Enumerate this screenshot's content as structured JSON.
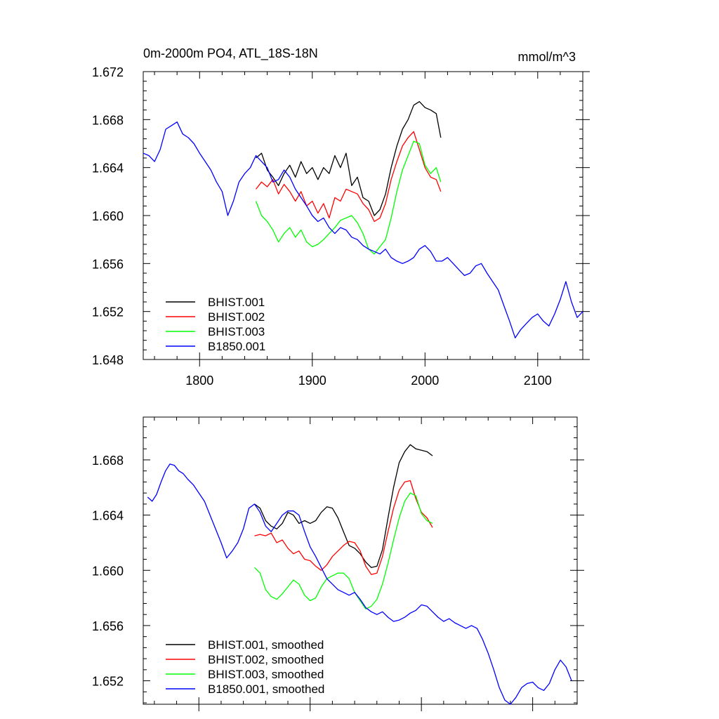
{
  "chart_data": [
    {
      "type": "line",
      "title": "0m-2000m PO4, ATL_18S-18N",
      "units": "mmol/m^3",
      "xlim": [
        1750,
        2140
      ],
      "ylim": [
        1.648,
        1.672
      ],
      "xticks": [
        1800,
        1900,
        2000,
        2100
      ],
      "xtick_labels": [
        "1800",
        "1900",
        "2000",
        "2100"
      ],
      "yticks": [
        1.648,
        1.652,
        1.656,
        1.66,
        1.664,
        1.668,
        1.672
      ],
      "ytick_labels": [
        "1.648",
        "1.652",
        "1.656",
        "1.660",
        "1.664",
        "1.668",
        "1.672"
      ],
      "legend_position": "bottom-left",
      "series": [
        {
          "name": "BHIST.001",
          "color": "#000000",
          "x": [
            1850,
            1855,
            1860,
            1865,
            1870,
            1875,
            1880,
            1885,
            1890,
            1895,
            1900,
            1905,
            1910,
            1915,
            1920,
            1925,
            1930,
            1935,
            1940,
            1945,
            1950,
            1955,
            1960,
            1965,
            1970,
            1975,
            1980,
            1985,
            1990,
            1995,
            2000,
            2005,
            2010,
            2014
          ],
          "y": [
            1.6648,
            1.6652,
            1.6638,
            1.6632,
            1.6625,
            1.6635,
            1.6642,
            1.6632,
            1.6645,
            1.6635,
            1.664,
            1.663,
            1.664,
            1.6635,
            1.665,
            1.664,
            1.6652,
            1.6625,
            1.6632,
            1.6615,
            1.6612,
            1.66,
            1.6605,
            1.6618,
            1.664,
            1.6658,
            1.6672,
            1.668,
            1.6692,
            1.6695,
            1.669,
            1.6688,
            1.6685,
            1.6665
          ]
        },
        {
          "name": "BHIST.002",
          "color": "#ff0000",
          "x": [
            1850,
            1855,
            1860,
            1865,
            1870,
            1875,
            1880,
            1885,
            1890,
            1895,
            1900,
            1905,
            1910,
            1915,
            1920,
            1925,
            1930,
            1935,
            1940,
            1945,
            1950,
            1955,
            1960,
            1965,
            1970,
            1975,
            1980,
            1985,
            1990,
            1995,
            2000,
            2005,
            2010,
            2014
          ],
          "y": [
            1.6622,
            1.6628,
            1.6624,
            1.663,
            1.6618,
            1.6626,
            1.662,
            1.6612,
            1.662,
            1.6608,
            1.6612,
            1.6602,
            1.661,
            1.6598,
            1.6615,
            1.6612,
            1.6622,
            1.662,
            1.6618,
            1.661,
            1.6605,
            1.6595,
            1.6598,
            1.661,
            1.663,
            1.6645,
            1.6658,
            1.6665,
            1.667,
            1.6655,
            1.664,
            1.6632,
            1.663,
            1.662
          ]
        },
        {
          "name": "BHIST.003",
          "color": "#00ff00",
          "x": [
            1850,
            1855,
            1860,
            1865,
            1870,
            1875,
            1880,
            1885,
            1890,
            1895,
            1900,
            1905,
            1910,
            1915,
            1920,
            1925,
            1930,
            1935,
            1940,
            1945,
            1950,
            1955,
            1960,
            1965,
            1970,
            1975,
            1980,
            1985,
            1990,
            1995,
            2000,
            2005,
            2010,
            2014
          ],
          "y": [
            1.6612,
            1.66,
            1.6595,
            1.6588,
            1.6578,
            1.6585,
            1.659,
            1.6582,
            1.6588,
            1.6578,
            1.6574,
            1.6576,
            1.658,
            1.6585,
            1.659,
            1.6596,
            1.6598,
            1.66,
            1.6594,
            1.6585,
            1.6572,
            1.6568,
            1.6574,
            1.658,
            1.6598,
            1.662,
            1.6638,
            1.665,
            1.6662,
            1.666,
            1.6642,
            1.6635,
            1.664,
            1.6628
          ]
        },
        {
          "name": "B1850.001",
          "color": "#0000ff",
          "x": [
            1750,
            1755,
            1760,
            1765,
            1770,
            1775,
            1780,
            1785,
            1790,
            1795,
            1800,
            1805,
            1810,
            1815,
            1820,
            1825,
            1830,
            1835,
            1840,
            1845,
            1850,
            1855,
            1860,
            1865,
            1870,
            1875,
            1880,
            1885,
            1890,
            1895,
            1900,
            1905,
            1910,
            1915,
            1920,
            1925,
            1930,
            1935,
            1940,
            1945,
            1950,
            1955,
            1960,
            1965,
            1970,
            1975,
            1980,
            1985,
            1990,
            1995,
            2000,
            2005,
            2010,
            2015,
            2020,
            2025,
            2030,
            2035,
            2040,
            2045,
            2050,
            2055,
            2060,
            2065,
            2070,
            2075,
            2080,
            2085,
            2090,
            2095,
            2100,
            2105,
            2110,
            2115,
            2120,
            2125,
            2130,
            2135,
            2140
          ],
          "y": [
            1.6652,
            1.665,
            1.6645,
            1.6655,
            1.6672,
            1.6675,
            1.6678,
            1.6668,
            1.6665,
            1.666,
            1.6652,
            1.6645,
            1.6638,
            1.6628,
            1.662,
            1.66,
            1.6612,
            1.6628,
            1.6635,
            1.664,
            1.665,
            1.6645,
            1.664,
            1.6628,
            1.663,
            1.6638,
            1.6632,
            1.6622,
            1.6615,
            1.6608,
            1.66,
            1.6595,
            1.6598,
            1.659,
            1.6585,
            1.659,
            1.6588,
            1.6582,
            1.658,
            1.6575,
            1.6572,
            1.657,
            1.6568,
            1.6572,
            1.6565,
            1.6562,
            1.656,
            1.6562,
            1.6565,
            1.6572,
            1.6575,
            1.657,
            1.6562,
            1.6562,
            1.6565,
            1.656,
            1.6555,
            1.655,
            1.6552,
            1.6558,
            1.656,
            1.6552,
            1.6545,
            1.6538,
            1.6525,
            1.6512,
            1.6498,
            1.6505,
            1.651,
            1.6515,
            1.6518,
            1.6512,
            1.6508,
            1.6518,
            1.653,
            1.6545,
            1.6528,
            1.6515,
            1.652
          ]
        }
      ]
    },
    {
      "type": "line",
      "title": "",
      "xlim": [
        1750,
        2140
      ],
      "ylim": [
        1.6503,
        1.6711
      ],
      "xticks": [
        1800,
        1900,
        2000,
        2100
      ],
      "yticks": [
        1.652,
        1.656,
        1.66,
        1.664,
        1.668
      ],
      "ytick_labels": [
        "1.652",
        "1.656",
        "1.660",
        "1.664",
        "1.668"
      ],
      "legend_position": "bottom-left",
      "series": [
        {
          "name": "BHIST.001, smoothed",
          "color": "#000000",
          "x": [
            1850,
            1855,
            1860,
            1865,
            1870,
            1875,
            1880,
            1885,
            1890,
            1895,
            1900,
            1905,
            1910,
            1915,
            1920,
            1925,
            1930,
            1935,
            1940,
            1945,
            1950,
            1955,
            1960,
            1965,
            1970,
            1975,
            1980,
            1985,
            1990,
            1995,
            2000,
            2005,
            2010
          ],
          "y": [
            1.6648,
            1.6645,
            1.6636,
            1.6632,
            1.663,
            1.6634,
            1.6642,
            1.664,
            1.6634,
            1.6636,
            1.6634,
            1.6636,
            1.6642,
            1.6646,
            1.6645,
            1.6638,
            1.6628,
            1.6618,
            1.6616,
            1.6612,
            1.6606,
            1.6602,
            1.6603,
            1.6615,
            1.6638,
            1.666,
            1.6678,
            1.6686,
            1.6691,
            1.6688,
            1.6687,
            1.6686,
            1.6683
          ]
        },
        {
          "name": "BHIST.002, smoothed",
          "color": "#ff0000",
          "x": [
            1850,
            1855,
            1860,
            1865,
            1870,
            1875,
            1880,
            1885,
            1890,
            1895,
            1900,
            1905,
            1910,
            1915,
            1920,
            1925,
            1930,
            1935,
            1940,
            1945,
            1950,
            1955,
            1960,
            1965,
            1970,
            1975,
            1980,
            1985,
            1990,
            1995,
            2000,
            2005,
            2010
          ],
          "y": [
            1.6625,
            1.6626,
            1.6625,
            1.6627,
            1.662,
            1.6622,
            1.6616,
            1.6612,
            1.6614,
            1.6608,
            1.6607,
            1.6603,
            1.66,
            1.6604,
            1.661,
            1.6614,
            1.6618,
            1.6621,
            1.662,
            1.6614,
            1.6603,
            1.6597,
            1.6598,
            1.661,
            1.6628,
            1.6645,
            1.6658,
            1.6664,
            1.6665,
            1.6652,
            1.6642,
            1.6638,
            1.6631
          ]
        },
        {
          "name": "BHIST.003, smoothed",
          "color": "#00ff00",
          "x": [
            1850,
            1855,
            1860,
            1865,
            1870,
            1875,
            1880,
            1885,
            1890,
            1895,
            1900,
            1905,
            1910,
            1915,
            1920,
            1925,
            1930,
            1935,
            1940,
            1945,
            1950,
            1955,
            1960,
            1965,
            1970,
            1975,
            1980,
            1985,
            1990,
            1995,
            2000,
            2005,
            2010
          ],
          "y": [
            1.6602,
            1.6598,
            1.6586,
            1.6581,
            1.6579,
            1.6583,
            1.6588,
            1.6593,
            1.659,
            1.6582,
            1.6578,
            1.658,
            1.6588,
            1.6594,
            1.6596,
            1.6598,
            1.6598,
            1.6594,
            1.6584,
            1.6578,
            1.6572,
            1.6574,
            1.6579,
            1.659,
            1.6605,
            1.6622,
            1.6638,
            1.665,
            1.6656,
            1.6654,
            1.6641,
            1.6636,
            1.6634
          ]
        },
        {
          "name": "B1850.001, smoothed",
          "color": "#0000ff",
          "x": [
            1754,
            1758,
            1762,
            1766,
            1770,
            1774,
            1778,
            1782,
            1786,
            1790,
            1795,
            1800,
            1805,
            1810,
            1815,
            1820,
            1825,
            1830,
            1835,
            1840,
            1845,
            1850,
            1855,
            1860,
            1865,
            1870,
            1875,
            1880,
            1885,
            1890,
            1895,
            1900,
            1905,
            1910,
            1915,
            1920,
            1925,
            1930,
            1935,
            1940,
            1945,
            1950,
            1955,
            1960,
            1965,
            1970,
            1975,
            1980,
            1985,
            1990,
            1995,
            2000,
            2005,
            2010,
            2015,
            2020,
            2025,
            2030,
            2035,
            2040,
            2045,
            2050,
            2055,
            2060,
            2065,
            2070,
            2075,
            2080,
            2085,
            2090,
            2095,
            2100,
            2105,
            2110,
            2115,
            2120,
            2125,
            2130,
            2135
          ],
          "y": [
            1.6653,
            1.665,
            1.6655,
            1.6664,
            1.6672,
            1.6677,
            1.6676,
            1.6672,
            1.667,
            1.6666,
            1.6662,
            1.6656,
            1.665,
            1.664,
            1.663,
            1.662,
            1.6609,
            1.6614,
            1.662,
            1.663,
            1.6645,
            1.6648,
            1.6642,
            1.6632,
            1.6628,
            1.6634,
            1.664,
            1.6643,
            1.6643,
            1.664,
            1.6628,
            1.6617,
            1.661,
            1.6602,
            1.6594,
            1.659,
            1.6586,
            1.6584,
            1.6582,
            1.6584,
            1.6579,
            1.6573,
            1.657,
            1.6568,
            1.657,
            1.6566,
            1.6563,
            1.6564,
            1.6566,
            1.6569,
            1.6571,
            1.6575,
            1.6574,
            1.657,
            1.6566,
            1.6563,
            1.6565,
            1.6562,
            1.656,
            1.6558,
            1.656,
            1.6558,
            1.655,
            1.654,
            1.6528,
            1.6515,
            1.6506,
            1.6503,
            1.6508,
            1.6515,
            1.6518,
            1.6519,
            1.6515,
            1.6513,
            1.6518,
            1.6528,
            1.6535,
            1.653,
            1.652
          ]
        }
      ]
    }
  ]
}
